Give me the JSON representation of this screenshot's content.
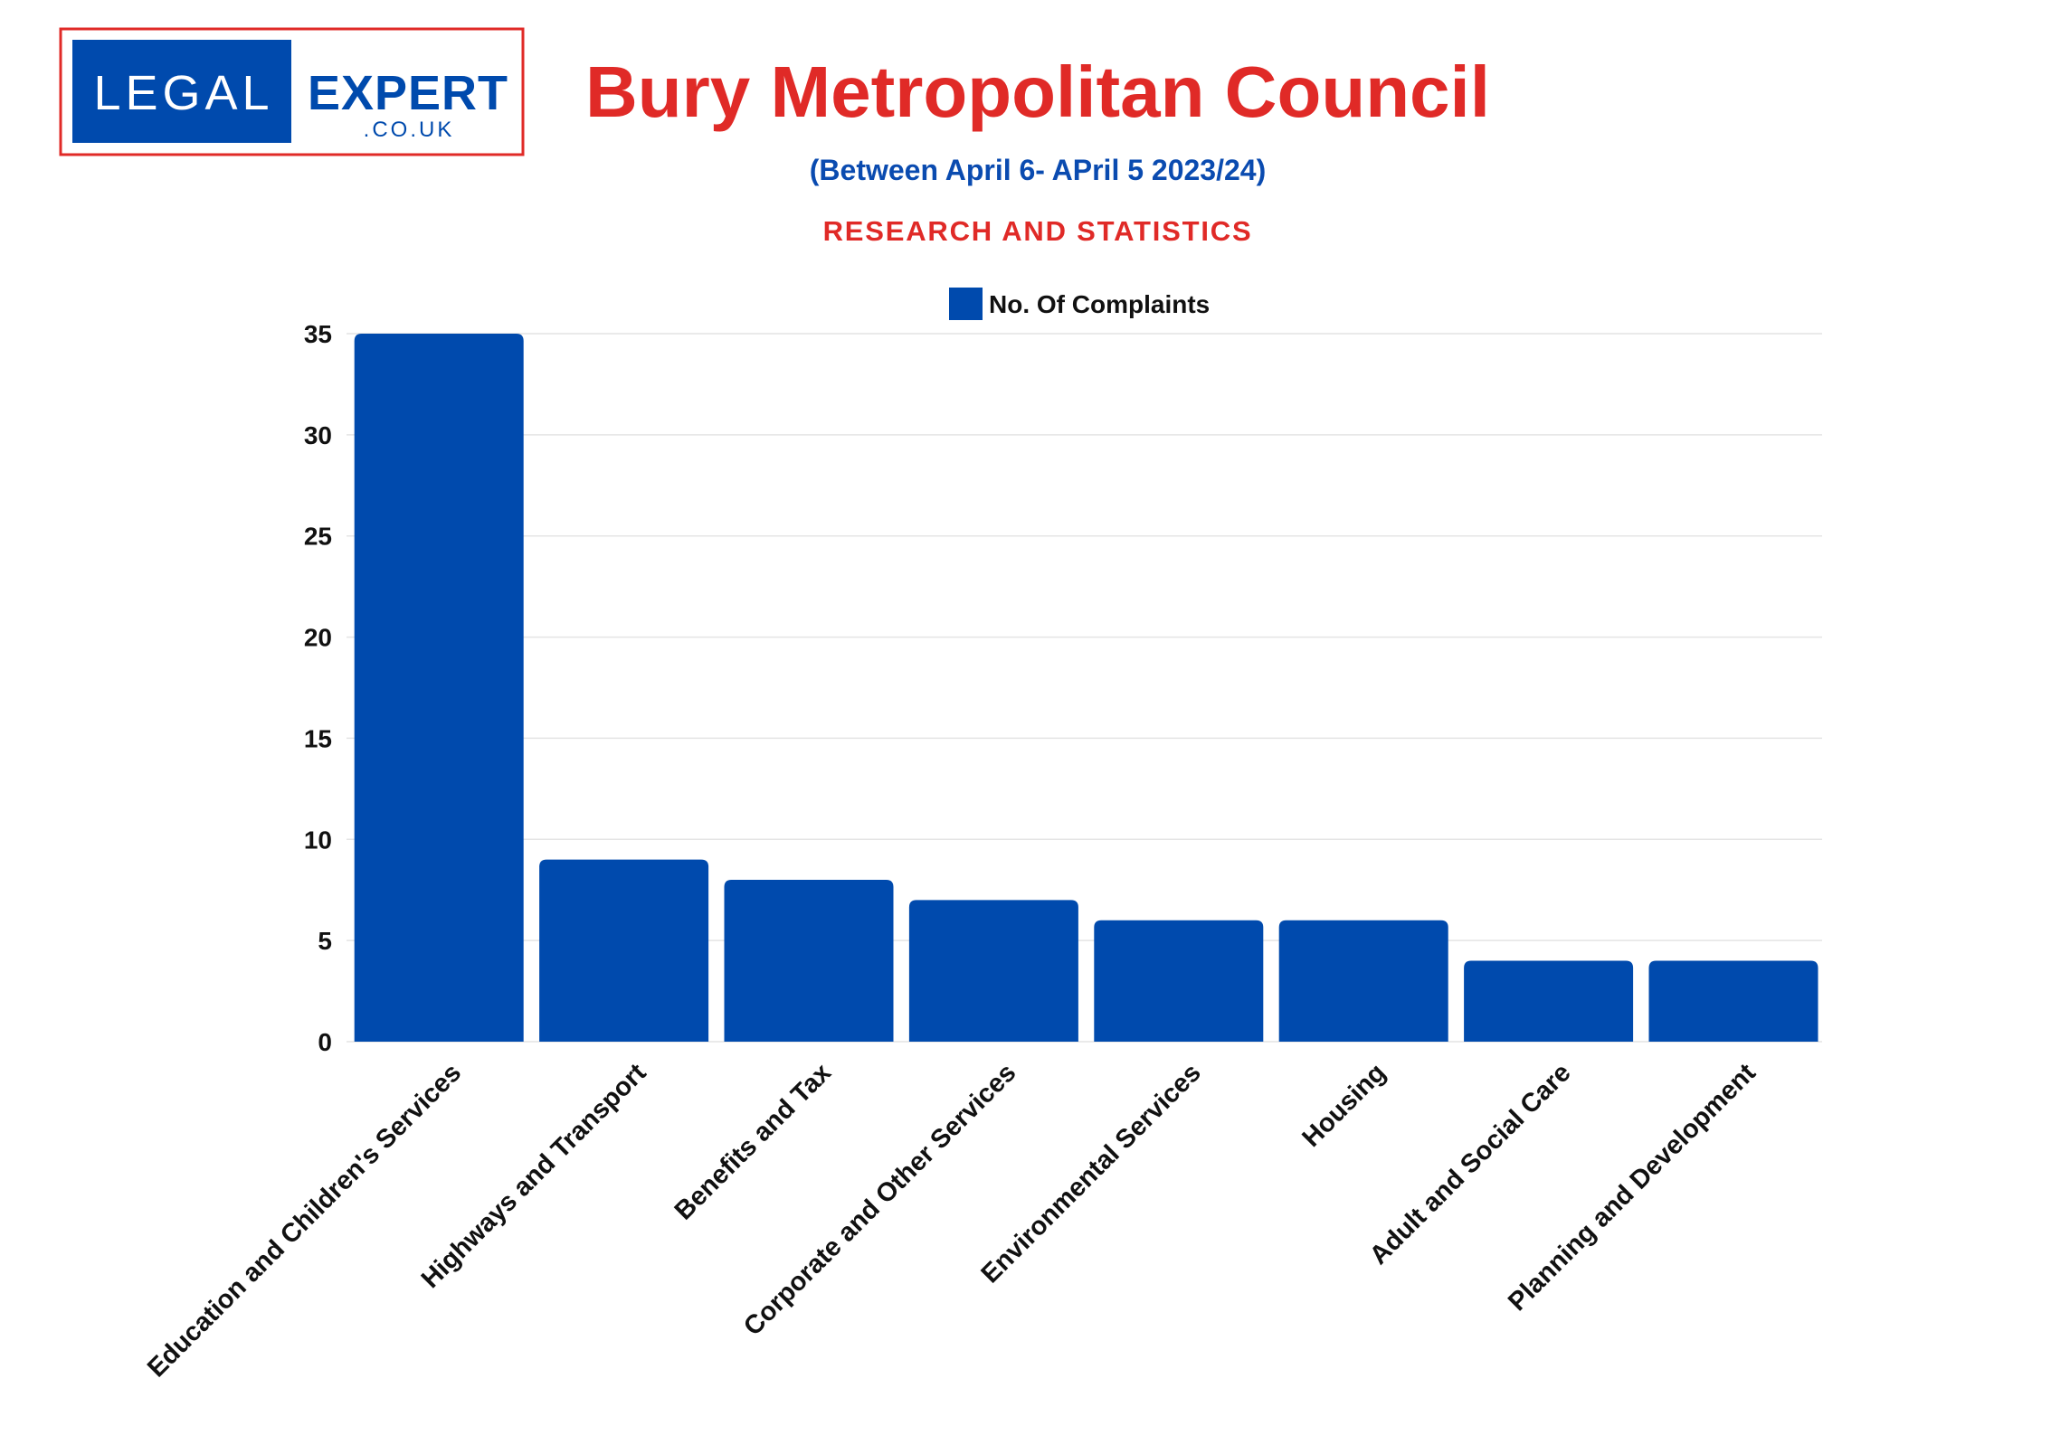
{
  "logo": {
    "word1": "LEGAL",
    "word2": "EXPERT",
    "domain": ".CO.UK"
  },
  "header": {
    "tagline": "RESEARCH AND STATISTICS"
  },
  "colors": {
    "title_red": "#e02a27",
    "brand_blue": "#004aad",
    "subtitle_blue": "#0a4bb0",
    "grid": "#e4e4e4"
  },
  "chart_data": {
    "type": "bar",
    "title": "Bury Metropolitan Council",
    "subtitle": "(Between April 6- APril 5 2023/24)",
    "categories": [
      "Education and Children's Services",
      "Highways and Transport",
      "Benefits and Tax",
      "Corporate and Other Services",
      "Environmental Services",
      "Housing",
      "Adult and Social Care",
      "Planning and Development"
    ],
    "series": [
      {
        "name": "No. Of Complaints",
        "values": [
          35,
          9,
          8,
          7,
          6,
          6,
          4,
          4
        ]
      }
    ],
    "yticks": [
      "0",
      "5",
      "10",
      "15",
      "20",
      "25",
      "30",
      "35"
    ],
    "ylim": [
      0,
      35
    ],
    "grid": true,
    "legend": "top-center"
  }
}
